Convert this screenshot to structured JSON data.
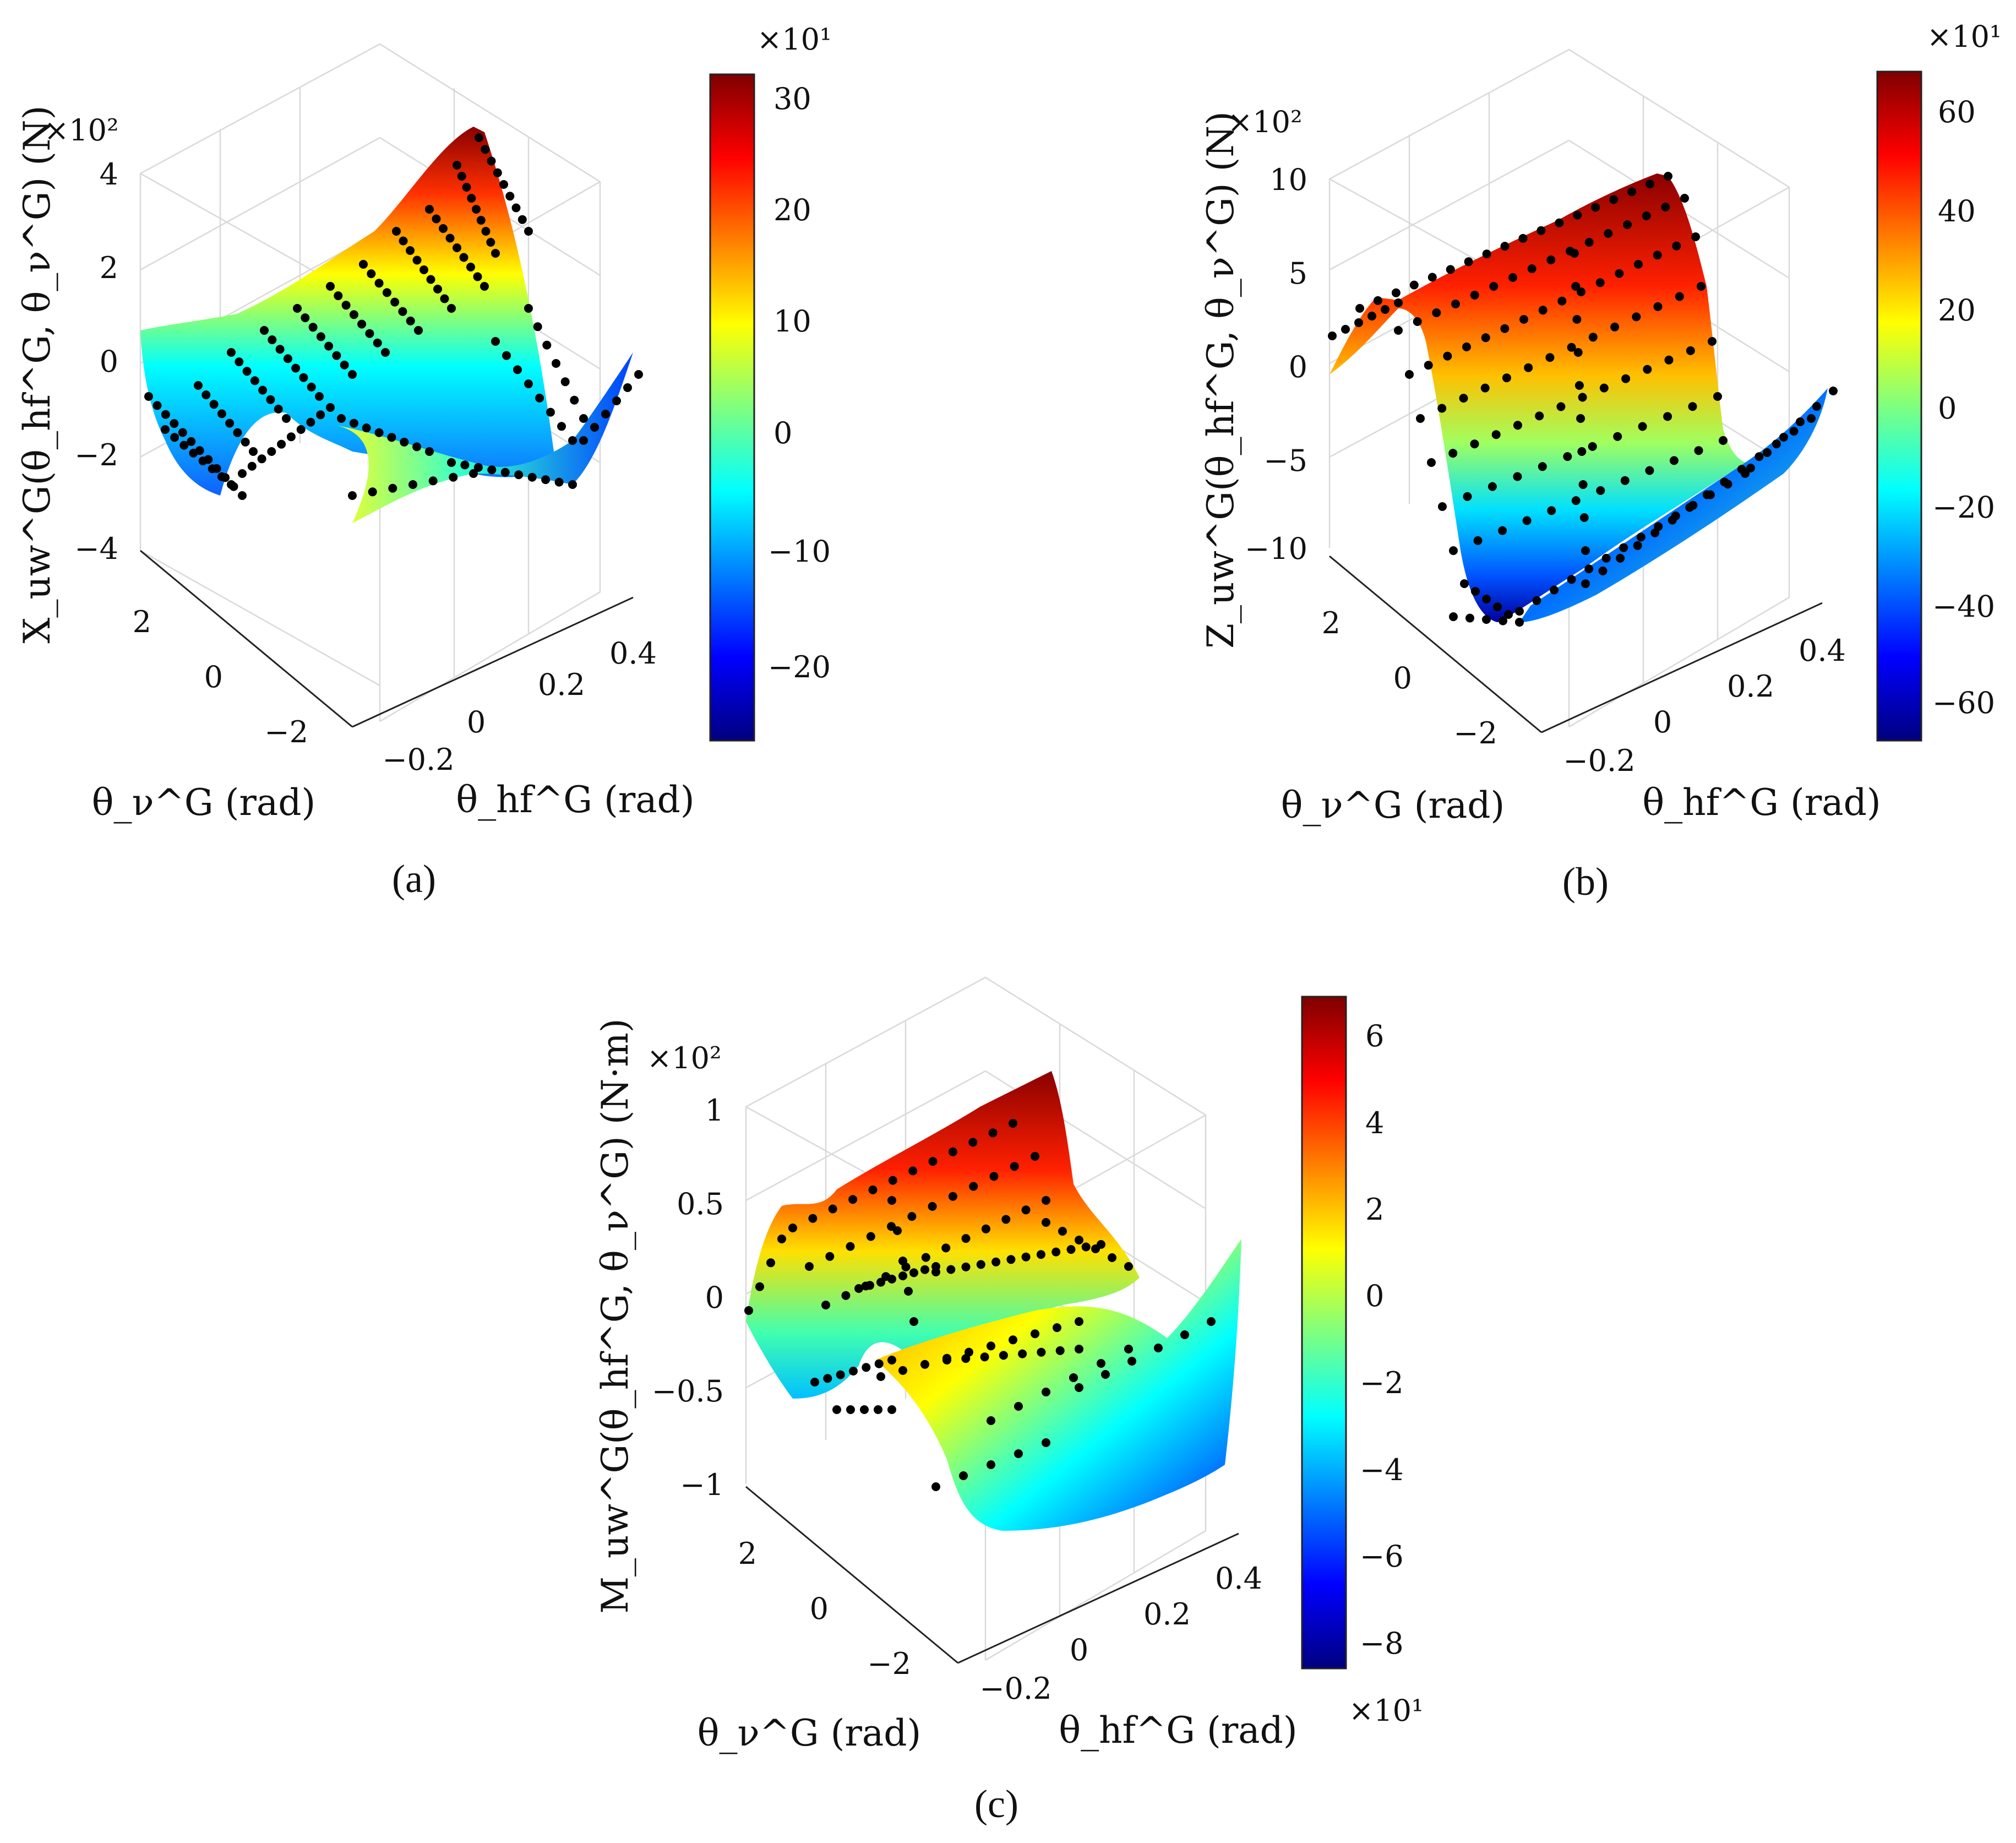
{
  "colormap": [
    "#00007f",
    "#0000ff",
    "#007fff",
    "#00ffff",
    "#7fff7f",
    "#ffff00",
    "#ff7f00",
    "#ff0000",
    "#7f0000"
  ],
  "panels": [
    {
      "panel_label": "(a)",
      "z_exponent": "×10²",
      "z_label": "X_uw^G(θ_hf^G, θ_ν^G) (N)",
      "x_label": "θ_ν^G (rad)",
      "y_label": "θ_hf^G (rad)",
      "z_ticks": [
        "4",
        "2",
        "0",
        "−2",
        "−4"
      ],
      "x_ticks": [
        "2",
        "0",
        "−2"
      ],
      "y_ticks": [
        "−0.2",
        "0",
        "0.2",
        "0.4"
      ],
      "colorbar": {
        "exponent": "×10¹",
        "ticks": [
          "30",
          "20",
          "10",
          "0",
          "−10",
          "−20"
        ]
      }
    },
    {
      "panel_label": "(b)",
      "z_exponent": "×10²",
      "z_label": "Z_uw^G(θ_hf^G, θ_ν^G) (N)",
      "x_label": "θ_ν^G (rad)",
      "y_label": "θ_hf^G (rad)",
      "z_ticks": [
        "10",
        "5",
        "0",
        "−5",
        "−10"
      ],
      "x_ticks": [
        "2",
        "0",
        "−2"
      ],
      "y_ticks": [
        "−0.2",
        "0",
        "0.2",
        "0.4"
      ],
      "colorbar": {
        "exponent": "×10¹",
        "ticks": [
          "60",
          "40",
          "20",
          "0",
          "−20",
          "−40",
          "−60"
        ]
      }
    },
    {
      "panel_label": "(c)",
      "z_exponent": "×10²",
      "z_label": "M_uw^G(θ_hf^G, θ_ν^G) (N·m)",
      "x_label": "θ_ν^G (rad)",
      "y_label": "θ_hf^G (rad)",
      "z_ticks": [
        "1",
        "0.5",
        "0",
        "−0.5",
        "−1"
      ],
      "x_ticks": [
        "2",
        "0",
        "−2"
      ],
      "y_ticks": [
        "−0.2",
        "0",
        "0.2",
        "0.4"
      ],
      "colorbar": {
        "exponent": "×10¹",
        "ticks": [
          "6",
          "4",
          "2",
          "0",
          "−2",
          "−4",
          "−6",
          "−8"
        ]
      }
    }
  ],
  "chart_data": [
    {
      "type": "surface",
      "panel": "(a)",
      "x_axis": "θ_ν^G (rad)",
      "xlim": [
        -3.14,
        3.14
      ],
      "y_axis": "θ_hf^G (rad)",
      "ylim": [
        -0.3,
        0.5
      ],
      "z_axis": "X_uw^G (N)",
      "zlim": [
        -4,
        4
      ],
      "z_scale": 100,
      "color_range": [
        -26,
        32
      ],
      "color_scale": 10,
      "surface_z_extremes": {
        "max": 4.4,
        "min": -3.4
      },
      "scatter_points": true,
      "grid": true
    },
    {
      "type": "surface",
      "panel": "(b)",
      "x_axis": "θ_ν^G (rad)",
      "xlim": [
        -3.14,
        3.14
      ],
      "y_axis": "θ_hf^G (rad)",
      "ylim": [
        -0.3,
        0.5
      ],
      "z_axis": "Z_uw^G (N)",
      "zlim": [
        -10,
        10
      ],
      "z_scale": 100,
      "color_range": [
        -67,
        67
      ],
      "color_scale": 10,
      "surface_z_extremes": {
        "max": 10,
        "min": -14
      },
      "scatter_points": true,
      "grid": true
    },
    {
      "type": "surface",
      "panel": "(c)",
      "x_axis": "θ_ν^G (rad)",
      "xlim": [
        -3.14,
        3.14
      ],
      "y_axis": "θ_hf^G (rad)",
      "ylim": [
        -0.3,
        0.5
      ],
      "z_axis": "M_uw^G (N·m)",
      "zlim": [
        -1,
        1
      ],
      "z_scale": 100,
      "color_range": [
        -8.5,
        7
      ],
      "color_scale": 10,
      "surface_z_extremes": {
        "max": 0.9,
        "min": -1.2
      },
      "scatter_points": true,
      "grid": true
    }
  ]
}
